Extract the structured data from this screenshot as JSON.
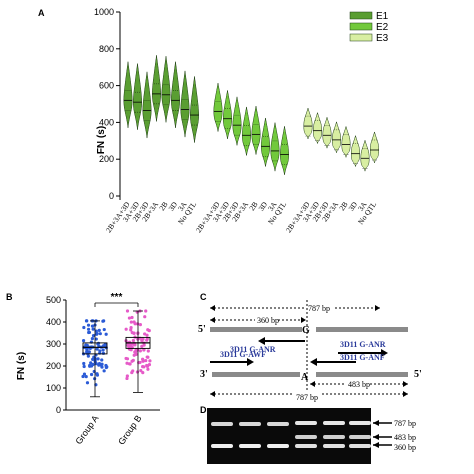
{
  "panels": {
    "A": "A",
    "B": "B",
    "C": "C",
    "D": "D"
  },
  "chart_data": [
    {
      "panel": "A",
      "type": "violin",
      "ylabel": "FN (s)",
      "ylim": [
        0,
        1000
      ],
      "yticks": [
        0,
        200,
        400,
        600,
        800,
        1000
      ],
      "legend": [
        "E1",
        "E2",
        "E3"
      ],
      "legend_position": "top-right",
      "colors": {
        "E1": "#5a9e32",
        "E2": "#72c93c",
        "E3": "#d8eea2"
      },
      "categories": [
        "2B+3A+3D",
        "3A+3D",
        "2B+3D",
        "2B+3A",
        "2B",
        "3D",
        "3A",
        "No QTL"
      ],
      "series": [
        {
          "name": "E1",
          "medians": [
            520,
            510,
            465,
            555,
            550,
            520,
            470,
            440
          ]
        },
        {
          "name": "E2",
          "medians": [
            460,
            420,
            385,
            330,
            335,
            270,
            245,
            225
          ]
        },
        {
          "name": "E3",
          "medians": [
            380,
            355,
            330,
            305,
            280,
            230,
            205,
            250
          ]
        }
      ]
    },
    {
      "panel": "B",
      "type": "box",
      "ylabel": "FN (s)",
      "ylim": [
        0,
        500
      ],
      "yticks": [
        0,
        100,
        200,
        300,
        400,
        500
      ],
      "categories": [
        "Group A",
        "Group B"
      ],
      "significance": "***",
      "colors": {
        "Group A": "#2b5bd6",
        "Group B": "#e65ac8"
      },
      "series": [
        {
          "name": "Group A",
          "min": 60,
          "q1": 255,
          "median": 285,
          "q3": 305,
          "max": 405
        },
        {
          "name": "Group B",
          "min": 80,
          "q1": 280,
          "median": 305,
          "q3": 330,
          "max": 450
        }
      ]
    }
  ],
  "diagram_C": {
    "length_top": "787 bp",
    "length_left": "360 bp",
    "length_right": "483 bp",
    "length_bottom": "787 bp",
    "marker_G": "G",
    "marker_A": "A",
    "primer_anr": "3D11 G-ANR",
    "primer_awf": "3D11 G-AWF",
    "primer_anr2": "3D11 G-ANR",
    "primer_anf": "3D11 G-ANF",
    "end_5_top": "5'",
    "end_3_top": "3'",
    "end_3_bottom": "3'",
    "end_5_bottom": "5'"
  },
  "gel_D": {
    "band_787": "787 bp",
    "band_483": "483 bp",
    "band_360": "360 bp"
  }
}
